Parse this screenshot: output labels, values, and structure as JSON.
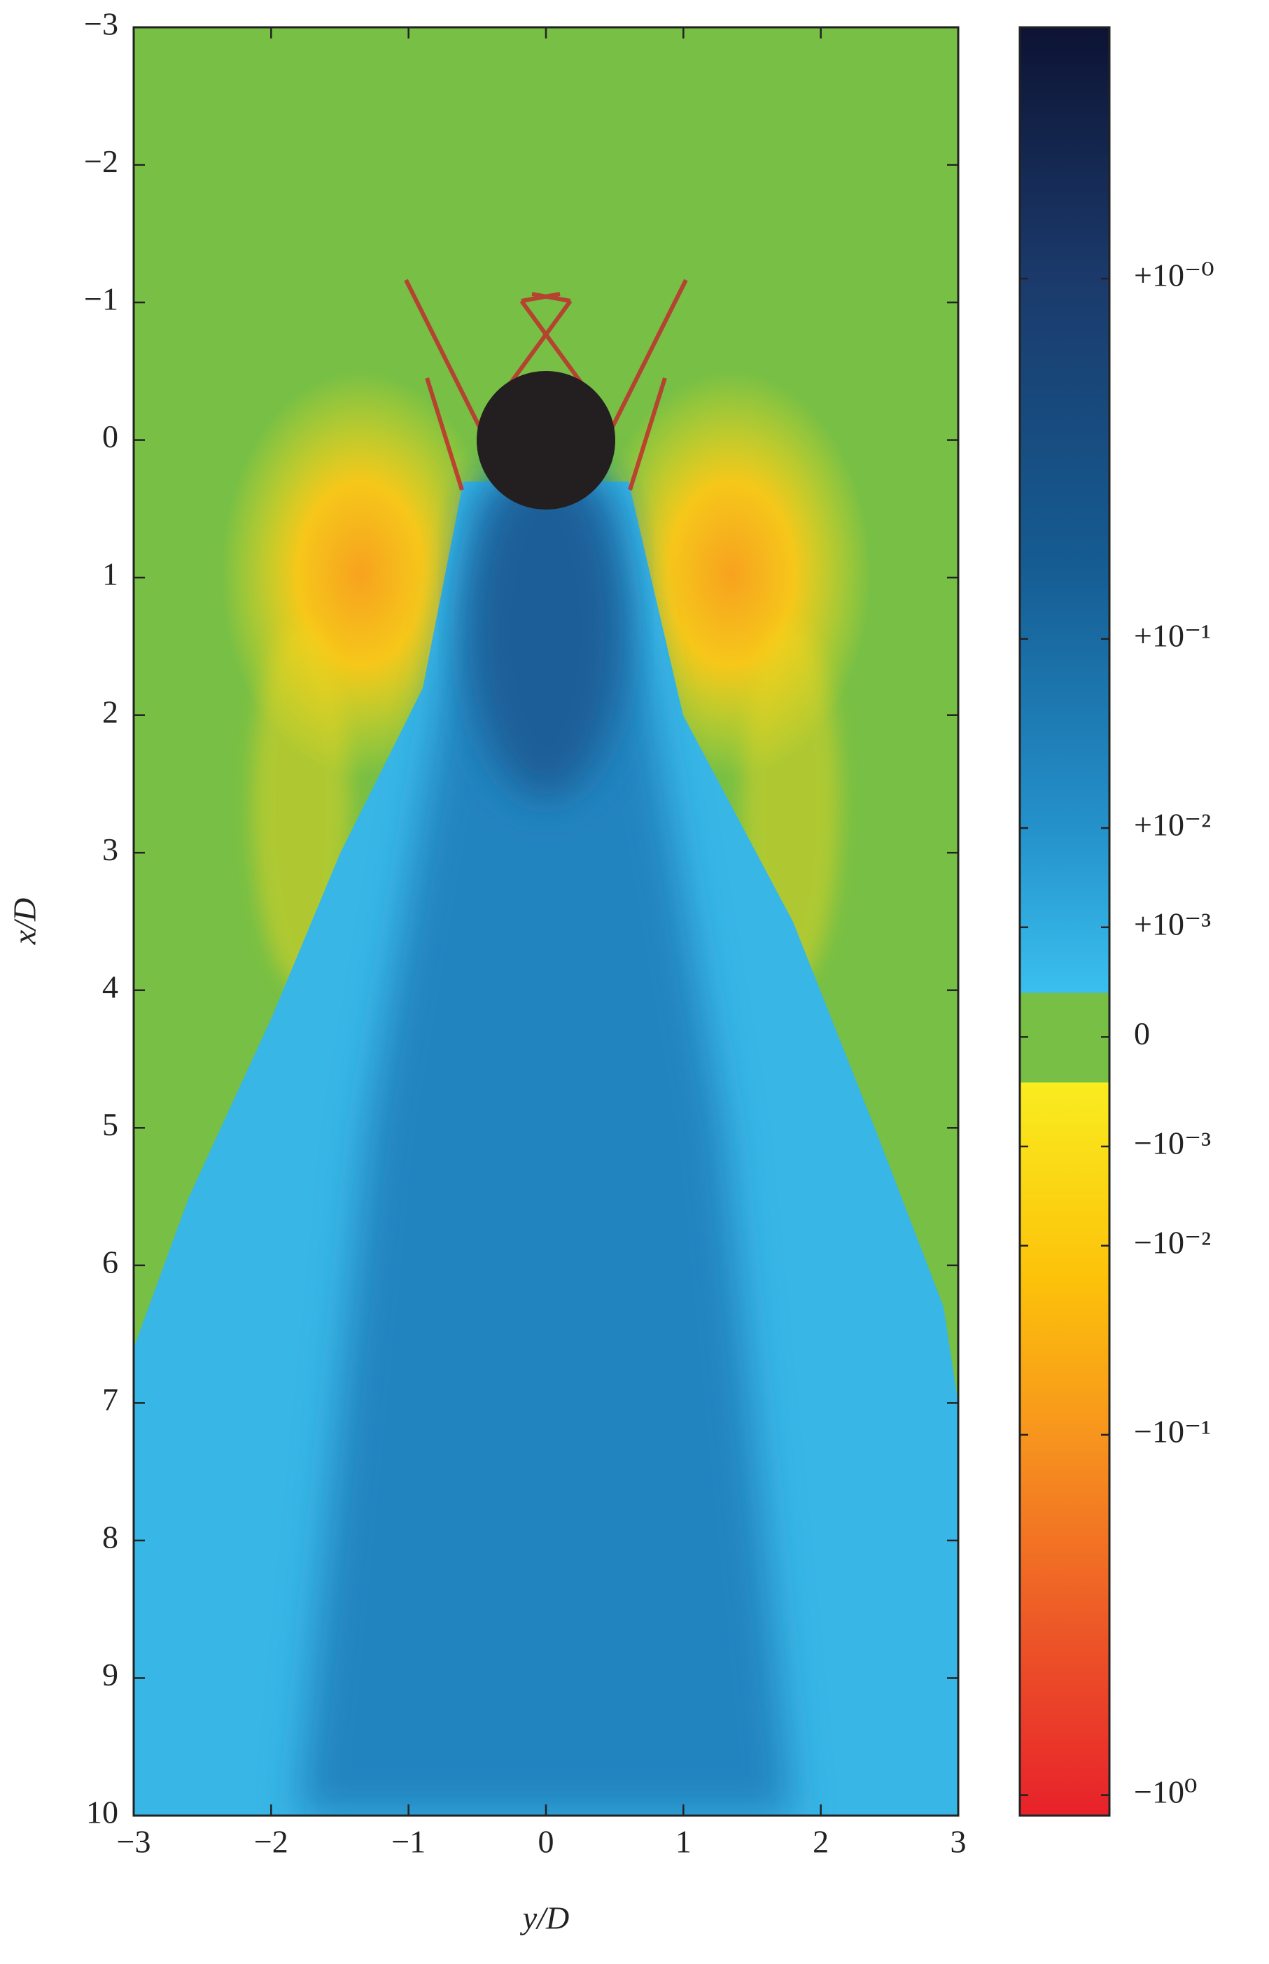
{
  "chart_data": {
    "type": "field",
    "xlabel": "y/D",
    "ylabel": "x/D",
    "xlim": [
      -3,
      3
    ],
    "ylim": [
      10,
      -3
    ],
    "xticks": [
      {
        "value": -3,
        "label": "−3"
      },
      {
        "value": -2,
        "label": "−2"
      },
      {
        "value": -1,
        "label": "−1"
      },
      0,
      1,
      2,
      3
    ],
    "yticks": [
      {
        "value": -3,
        "label": "−3"
      },
      {
        "value": -2,
        "label": "−2"
      },
      {
        "value": -1,
        "label": "−1"
      },
      0,
      1,
      2,
      3,
      4,
      5,
      6,
      7,
      8,
      9,
      10
    ],
    "colorbar": {
      "norm": "power",
      "gamma": 0.28,
      "clim": [
        -1.1,
        2.78
      ],
      "ticks": [
        {
          "value": 1,
          "label": "+10⁻⁰"
        },
        {
          "value": 0.1,
          "label": "+10⁻¹"
        },
        {
          "value": 0.01,
          "label": "+10⁻²"
        },
        {
          "value": 0.001,
          "label": "+10⁻³"
        },
        0,
        {
          "value": -0.001,
          "label": "−10⁻³"
        },
        {
          "value": -0.01,
          "label": "−10⁻²"
        },
        {
          "value": -0.1,
          "label": "−10⁻¹"
        },
        {
          "value": -1,
          "label": "−10⁰"
        }
      ]
    }
  }
}
